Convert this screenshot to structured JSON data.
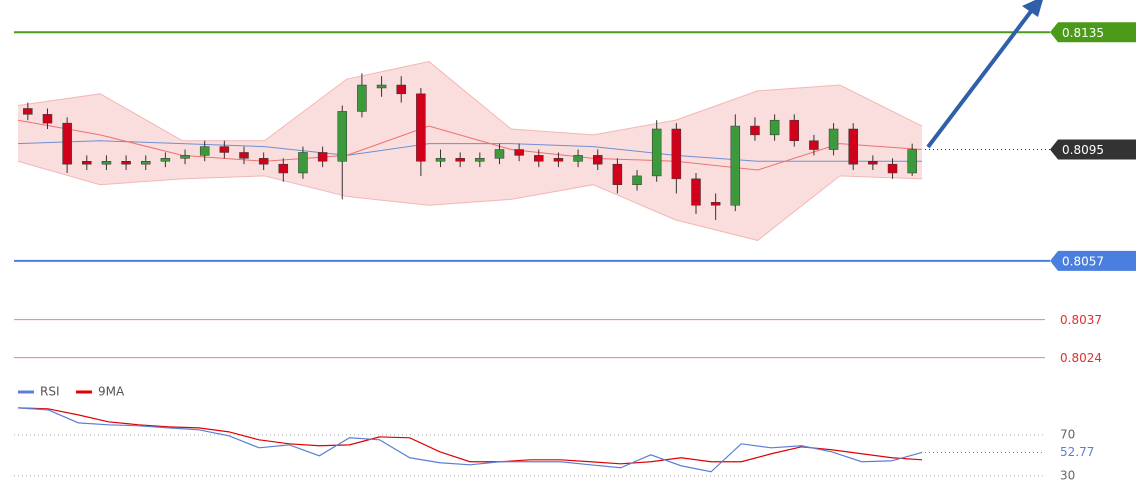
{
  "chart_data": [
    {
      "type": "candlestick",
      "ylim": [
        0.8014,
        0.8146
      ],
      "up_color": "#3c9a3c",
      "down_color": "#d0021b",
      "ohlc": [
        [
          0.8109,
          0.8111,
          0.8105,
          0.8107
        ],
        [
          0.8107,
          0.8109,
          0.8102,
          0.8104
        ],
        [
          0.8104,
          0.8106,
          0.8087,
          0.809
        ],
        [
          0.8091,
          0.8093,
          0.8088,
          0.809
        ],
        [
          0.809,
          0.8093,
          0.8088,
          0.8091
        ],
        [
          0.8091,
          0.8093,
          0.8088,
          0.809
        ],
        [
          0.809,
          0.8093,
          0.8088,
          0.8091
        ],
        [
          0.8091,
          0.8094,
          0.8089,
          0.8092
        ],
        [
          0.8092,
          0.8095,
          0.809,
          0.8093
        ],
        [
          0.8093,
          0.8098,
          0.8091,
          0.8096
        ],
        [
          0.8096,
          0.8098,
          0.8092,
          0.8094
        ],
        [
          0.8094,
          0.8096,
          0.809,
          0.8092
        ],
        [
          0.8092,
          0.8094,
          0.8088,
          0.809
        ],
        [
          0.809,
          0.8092,
          0.8084,
          0.8087
        ],
        [
          0.8087,
          0.8096,
          0.8085,
          0.8094
        ],
        [
          0.8094,
          0.8096,
          0.8089,
          0.8091
        ],
        [
          0.8091,
          0.811,
          0.8078,
          0.8108
        ],
        [
          0.8108,
          0.8121,
          0.8106,
          0.8117
        ],
        [
          0.8116,
          0.812,
          0.8113,
          0.8117
        ],
        [
          0.8117,
          0.812,
          0.8111,
          0.8114
        ],
        [
          0.8114,
          0.8116,
          0.8086,
          0.8091
        ],
        [
          0.8091,
          0.8095,
          0.8089,
          0.8092
        ],
        [
          0.8092,
          0.8094,
          0.8089,
          0.8091
        ],
        [
          0.8091,
          0.8094,
          0.8089,
          0.8092
        ],
        [
          0.8092,
          0.8097,
          0.809,
          0.8095
        ],
        [
          0.8095,
          0.8097,
          0.8091,
          0.8093
        ],
        [
          0.8093,
          0.8095,
          0.8089,
          0.8091
        ],
        [
          0.8092,
          0.8094,
          0.8089,
          0.8091
        ],
        [
          0.8091,
          0.8095,
          0.8089,
          0.8093
        ],
        [
          0.8093,
          0.8095,
          0.8088,
          0.809
        ],
        [
          0.809,
          0.8092,
          0.808,
          0.8083
        ],
        [
          0.8083,
          0.8088,
          0.8081,
          0.8086
        ],
        [
          0.8086,
          0.8105,
          0.8084,
          0.8102
        ],
        [
          0.8102,
          0.8104,
          0.808,
          0.8085
        ],
        [
          0.8085,
          0.8087,
          0.8073,
          0.8076
        ],
        [
          0.8077,
          0.808,
          0.8071,
          0.8076
        ],
        [
          0.8076,
          0.8107,
          0.8074,
          0.8103
        ],
        [
          0.8103,
          0.8106,
          0.8098,
          0.81
        ],
        [
          0.81,
          0.8107,
          0.8098,
          0.8105
        ],
        [
          0.8105,
          0.8107,
          0.8096,
          0.8098
        ],
        [
          0.8098,
          0.81,
          0.8093,
          0.8095
        ],
        [
          0.8095,
          0.8104,
          0.8093,
          0.8102
        ],
        [
          0.8102,
          0.8104,
          0.8088,
          0.809
        ],
        [
          0.8091,
          0.8093,
          0.8088,
          0.809
        ],
        [
          0.809,
          0.8092,
          0.8085,
          0.8087
        ],
        [
          0.8087,
          0.8097,
          0.8086,
          0.8095
        ]
      ],
      "bands": {
        "color": "#f4b6b6",
        "upper": [
          0.811,
          0.8114,
          0.8098,
          0.8098,
          0.8119,
          0.8125,
          0.8102,
          0.81,
          0.8105,
          0.8115,
          0.8117,
          0.8103
        ],
        "lower": [
          0.8091,
          0.8083,
          0.8085,
          0.8086,
          0.8079,
          0.8076,
          0.8078,
          0.8083,
          0.8071,
          0.8064,
          0.8086,
          0.8085
        ]
      },
      "ma_lines": [
        {
          "color": "#6f8fd0",
          "values": [
            0.8097,
            0.8098,
            0.8097,
            0.8096,
            0.8093,
            0.8097,
            0.8097,
            0.8096,
            0.8093,
            0.8091,
            0.8091,
            0.8091
          ]
        },
        {
          "color": "#f07070",
          "values": [
            0.8105,
            0.81,
            0.8093,
            0.8091,
            0.8093,
            0.8103,
            0.8095,
            0.8092,
            0.8091,
            0.8088,
            0.8097,
            0.8095
          ]
        }
      ],
      "levels": [
        {
          "value": 0.8135,
          "color": "#4c9a1a",
          "style": "badge"
        },
        {
          "value": 0.8095,
          "color": "#333333",
          "style": "dotted-badge"
        },
        {
          "value": 0.8057,
          "color": "#4a7fe0",
          "style": "badge"
        },
        {
          "value": 0.8037,
          "color": "#f08080",
          "style": "text"
        },
        {
          "value": 0.8024,
          "color": "#f08080",
          "style": "text"
        }
      ]
    },
    {
      "type": "line",
      "ylim": [
        20,
        105
      ],
      "yticks": [
        30,
        70
      ],
      "current": 52.77,
      "series": [
        {
          "name": "RSI",
          "color": "#5b7fd6",
          "values": [
            96.3,
            94.4,
            81.7,
            79.8,
            78.8,
            76.8,
            74.9,
            69.0,
            57.3,
            60.2,
            49.5,
            67.1,
            65.1,
            47.6,
            42.7,
            40.7,
            43.7,
            43.7,
            43.7,
            40.7,
            37.8,
            50.5,
            39.8,
            33.9,
            61.2,
            57.3,
            59.3,
            53.4,
            43.7,
            44.6,
            52.77
          ]
        },
        {
          "name": "9MA",
          "color": "#e00000",
          "values": [
            96.3,
            95.4,
            89.5,
            82.7,
            79.8,
            77.8,
            76.8,
            72.9,
            65.1,
            61.2,
            59.3,
            60.2,
            68.0,
            67.1,
            53.4,
            43.7,
            43.7,
            45.6,
            45.6,
            43.7,
            41.7,
            43.7,
            47.6,
            43.7,
            43.7,
            51.5,
            58.3,
            55.4,
            51.5,
            47.6,
            45.6
          ]
        }
      ]
    }
  ]
}
